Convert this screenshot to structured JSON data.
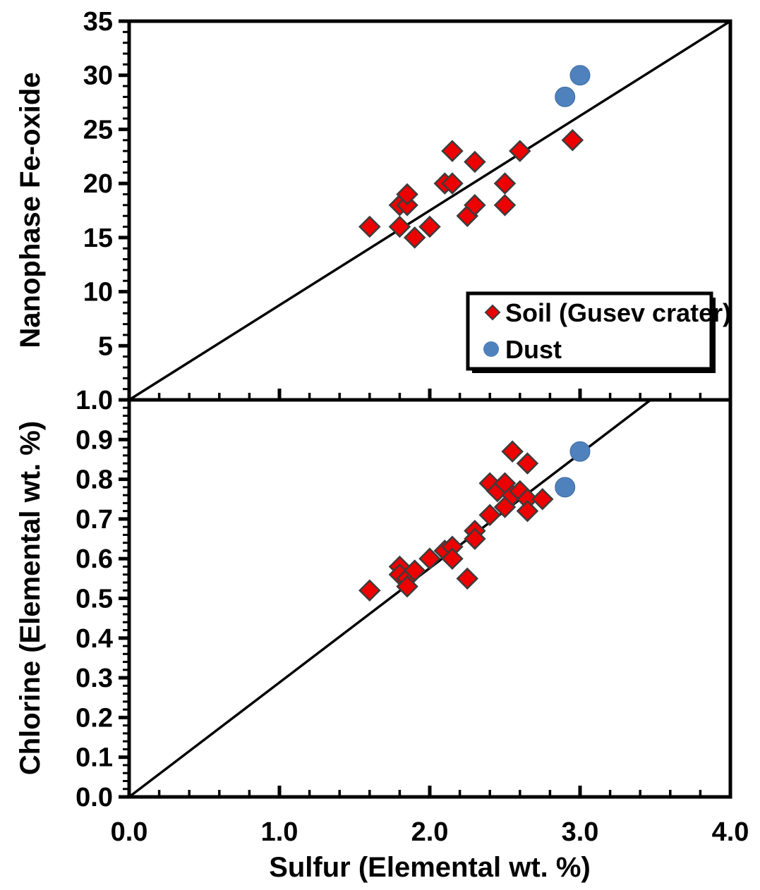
{
  "figure": {
    "x_axis_title": "Sulfur (Elemental wt. %)",
    "top_y_axis_title": "Nanophase Fe-oxide",
    "bottom_y_axis_title": "Chlorine (Elemental wt. %)",
    "background_color": "#ffffff",
    "frame_color": "#000000"
  },
  "legend": {
    "position": "top-panel-lower-right",
    "border_color": "#000000",
    "fill_color": "#ffffff",
    "items": [
      {
        "label": "Soil (Gusev crater)",
        "marker": "diamond",
        "color": "#EC0000"
      },
      {
        "label": "Dust",
        "marker": "circle",
        "color": "#4F81BD"
      }
    ]
  },
  "chart_data": [
    {
      "type": "scatter",
      "panel": "top",
      "xlabel": "Sulfur (Elemental wt. %)",
      "ylabel": "Nanophase Fe-oxide",
      "xlim": [
        0,
        4
      ],
      "ylim": [
        0,
        35
      ],
      "grid": false,
      "x_ticks": {
        "values": [
          0,
          1,
          2,
          3,
          4
        ],
        "labels": [],
        "minor_step": 0.2,
        "show_labels": false
      },
      "y_ticks": {
        "values": [
          5,
          10,
          15,
          20,
          25,
          30,
          35
        ],
        "labels": [
          "5",
          "10",
          "15",
          "20",
          "25",
          "30",
          "35"
        ],
        "minor_step": 1
      },
      "one_to_one_line": {
        "x1": 0,
        "y1": 0,
        "x2": 4,
        "y2": 35
      },
      "series": [
        {
          "name": "Soil (Gusev crater)",
          "marker": "diamond",
          "color": "#EC0000",
          "edge_color": "#3C3C3C",
          "size": 14,
          "points": [
            [
              1.6,
              16
            ],
            [
              1.8,
              16
            ],
            [
              1.8,
              18
            ],
            [
              1.85,
              18
            ],
            [
              1.85,
              19
            ],
            [
              1.9,
              15
            ],
            [
              2.0,
              16
            ],
            [
              2.1,
              20
            ],
            [
              2.15,
              20
            ],
            [
              2.15,
              23
            ],
            [
              2.25,
              17
            ],
            [
              2.3,
              18
            ],
            [
              2.3,
              22
            ],
            [
              2.5,
              18
            ],
            [
              2.5,
              20
            ],
            [
              2.6,
              23
            ],
            [
              2.95,
              24
            ]
          ]
        },
        {
          "name": "Dust",
          "marker": "circle",
          "color": "#4F81BD",
          "edge_color": "#3D6DA3",
          "size": 14,
          "points": [
            [
              2.9,
              28
            ],
            [
              3.0,
              30
            ]
          ]
        }
      ]
    },
    {
      "type": "scatter",
      "panel": "bottom",
      "xlabel": "Sulfur (Elemental wt. %)",
      "ylabel": "Chlorine (Elemental wt. %)",
      "xlim": [
        0,
        4
      ],
      "ylim": [
        0,
        1
      ],
      "grid": false,
      "x_ticks": {
        "values": [
          0,
          1,
          2,
          3,
          4
        ],
        "labels": [
          "0.0",
          "1.0",
          "2.0",
          "3.0",
          "4.0"
        ],
        "minor_step": 0.2,
        "show_labels": true
      },
      "y_ticks": {
        "values": [
          0,
          0.1,
          0.2,
          0.3,
          0.4,
          0.5,
          0.6,
          0.7,
          0.8,
          0.9,
          1.0
        ],
        "labels": [
          "0.0",
          "0.1",
          "0.2",
          "0.3",
          "0.4",
          "0.5",
          "0.6",
          "0.7",
          "0.8",
          "0.9",
          "1.0"
        ],
        "minor_step": 0.02
      },
      "one_to_one_line": {
        "x1": 0,
        "y1": 0,
        "x2": 3.47,
        "y2": 1.0
      },
      "series": [
        {
          "name": "Soil (Gusev crater)",
          "marker": "diamond",
          "color": "#EC0000",
          "edge_color": "#3C3C3C",
          "size": 14,
          "points": [
            [
              1.6,
              0.52
            ],
            [
              1.8,
              0.58
            ],
            [
              1.8,
              0.56
            ],
            [
              1.85,
              0.55
            ],
            [
              1.85,
              0.53
            ],
            [
              1.9,
              0.57
            ],
            [
              2.0,
              0.6
            ],
            [
              2.1,
              0.62
            ],
            [
              2.15,
              0.63
            ],
            [
              2.15,
              0.6
            ],
            [
              2.25,
              0.55
            ],
            [
              2.3,
              0.67
            ],
            [
              2.3,
              0.65
            ],
            [
              2.4,
              0.71
            ],
            [
              2.4,
              0.79
            ],
            [
              2.45,
              0.77
            ],
            [
              2.5,
              0.79
            ],
            [
              2.5,
              0.73
            ],
            [
              2.55,
              0.87
            ],
            [
              2.55,
              0.76
            ],
            [
              2.6,
              0.77
            ],
            [
              2.65,
              0.84
            ],
            [
              2.65,
              0.75
            ],
            [
              2.65,
              0.72
            ],
            [
              2.75,
              0.75
            ]
          ]
        },
        {
          "name": "Dust",
          "marker": "circle",
          "color": "#4F81BD",
          "edge_color": "#3D6DA3",
          "size": 14,
          "points": [
            [
              2.9,
              0.78
            ],
            [
              3.0,
              0.87
            ]
          ]
        }
      ]
    }
  ]
}
